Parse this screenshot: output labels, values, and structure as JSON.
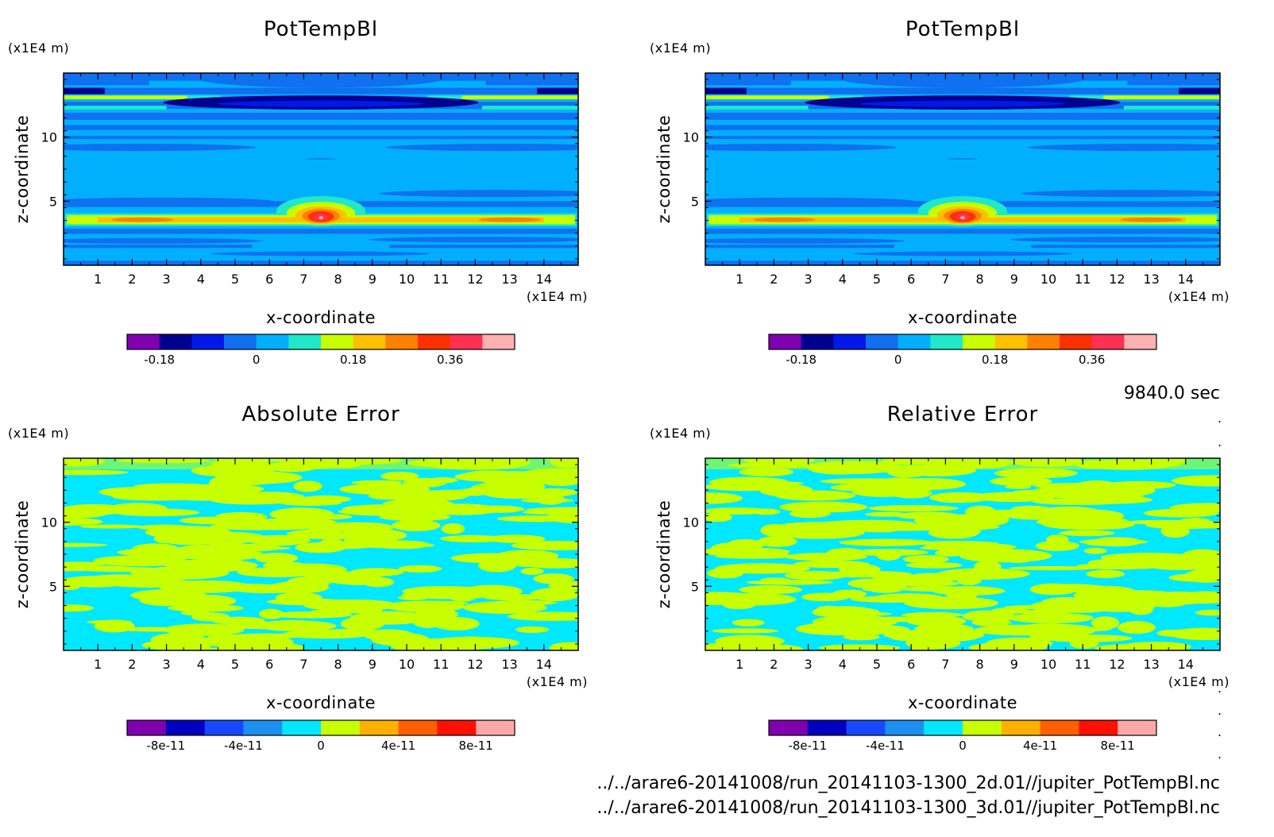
{
  "time_label": "9840.0 sec",
  "files": [
    "../../arare6-20141008/run_20141103-1300_2d.01//jupiter_PotTempBl.nc",
    "../../arare6-20141008/run_20141103-1300_3d.01//jupiter_PotTempBl.nc"
  ],
  "colors": {
    "potemp": [
      "#8000b0",
      "#000090",
      "#0018e8",
      "#1070f0",
      "#00b0ff",
      "#20e8c8",
      "#c8ff00",
      "#ffc000",
      "#ff8000",
      "#ff3000",
      "#ff3050",
      "#ffb0b0"
    ],
    "error": [
      "#8000b0",
      "#0000c0",
      "#1848ff",
      "#1c90f0",
      "#00e8ff",
      "#c8ff00",
      "#ffb000",
      "#ff6000",
      "#ff1000",
      "#ffa8a8"
    ]
  },
  "chart_data": [
    {
      "type": "heatmap",
      "title": "PotTempBl",
      "xlabel": "x-coordinate",
      "ylabel": "z-coordinate",
      "x_unit": "(x1E4 m)",
      "y_unit": "(x1E4 m)",
      "x_ticks": [
        "1",
        "2",
        "3",
        "4",
        "5",
        "6",
        "7",
        "8",
        "9",
        "10",
        "11",
        "12",
        "13",
        "14"
      ],
      "y_ticks": [
        "5",
        "10"
      ],
      "xlim": [
        0,
        15
      ],
      "ylim": [
        0,
        15
      ],
      "colorbar": {
        "levels": 12,
        "min": -0.24,
        "max": 0.48,
        "ticks": [
          "-0.18",
          "0",
          "0.18",
          "0.36"
        ],
        "tick_values": [
          -0.18,
          0,
          0.18,
          0.36
        ]
      }
    },
    {
      "type": "heatmap",
      "title": "PotTempBl",
      "xlabel": "x-coordinate",
      "ylabel": "z-coordinate",
      "x_unit": "(x1E4 m)",
      "y_unit": "(x1E4 m)",
      "x_ticks": [
        "1",
        "2",
        "3",
        "4",
        "5",
        "6",
        "7",
        "8",
        "9",
        "10",
        "11",
        "12",
        "13",
        "14"
      ],
      "y_ticks": [
        "5",
        "10"
      ],
      "xlim": [
        0,
        15
      ],
      "ylim": [
        0,
        15
      ],
      "colorbar": {
        "levels": 12,
        "min": -0.24,
        "max": 0.48,
        "ticks": [
          "-0.18",
          "0",
          "0.18",
          "0.36"
        ],
        "tick_values": [
          -0.18,
          0,
          0.18,
          0.36
        ]
      }
    },
    {
      "type": "heatmap",
      "title": "Absolute Error",
      "xlabel": "x-coordinate",
      "ylabel": "z-coordinate",
      "x_unit": "(x1E4 m)",
      "y_unit": "(x1E4 m)",
      "x_ticks": [
        "1",
        "2",
        "3",
        "4",
        "5",
        "6",
        "7",
        "8",
        "9",
        "10",
        "11",
        "12",
        "13",
        "14"
      ],
      "y_ticks": [
        "5",
        "10"
      ],
      "xlim": [
        0,
        15
      ],
      "ylim": [
        0,
        15
      ],
      "colorbar": {
        "levels": 10,
        "min": -1e-10,
        "max": 1e-10,
        "ticks": [
          "-8e-11",
          "-4e-11",
          "0",
          "4e-11",
          "8e-11"
        ],
        "tick_values": [
          -8e-11,
          -4e-11,
          0,
          4e-11,
          8e-11
        ]
      }
    },
    {
      "type": "heatmap",
      "title": "Relative Error",
      "xlabel": "x-coordinate",
      "ylabel": "z-coordinate",
      "x_unit": "(x1E4 m)",
      "y_unit": "(x1E4 m)",
      "x_ticks": [
        "1",
        "2",
        "3",
        "4",
        "5",
        "6",
        "7",
        "8",
        "9",
        "10",
        "11",
        "12",
        "13",
        "14"
      ],
      "y_ticks": [
        "5",
        "10"
      ],
      "xlim": [
        0,
        15
      ],
      "ylim": [
        0,
        15
      ],
      "colorbar": {
        "levels": 10,
        "min": -1e-10,
        "max": 1e-10,
        "ticks": [
          "-8e-11",
          "-4e-11",
          "0",
          "4e-11",
          "8e-11"
        ],
        "tick_values": [
          -8e-11,
          -4e-11,
          0,
          4e-11,
          8e-11
        ]
      }
    }
  ]
}
